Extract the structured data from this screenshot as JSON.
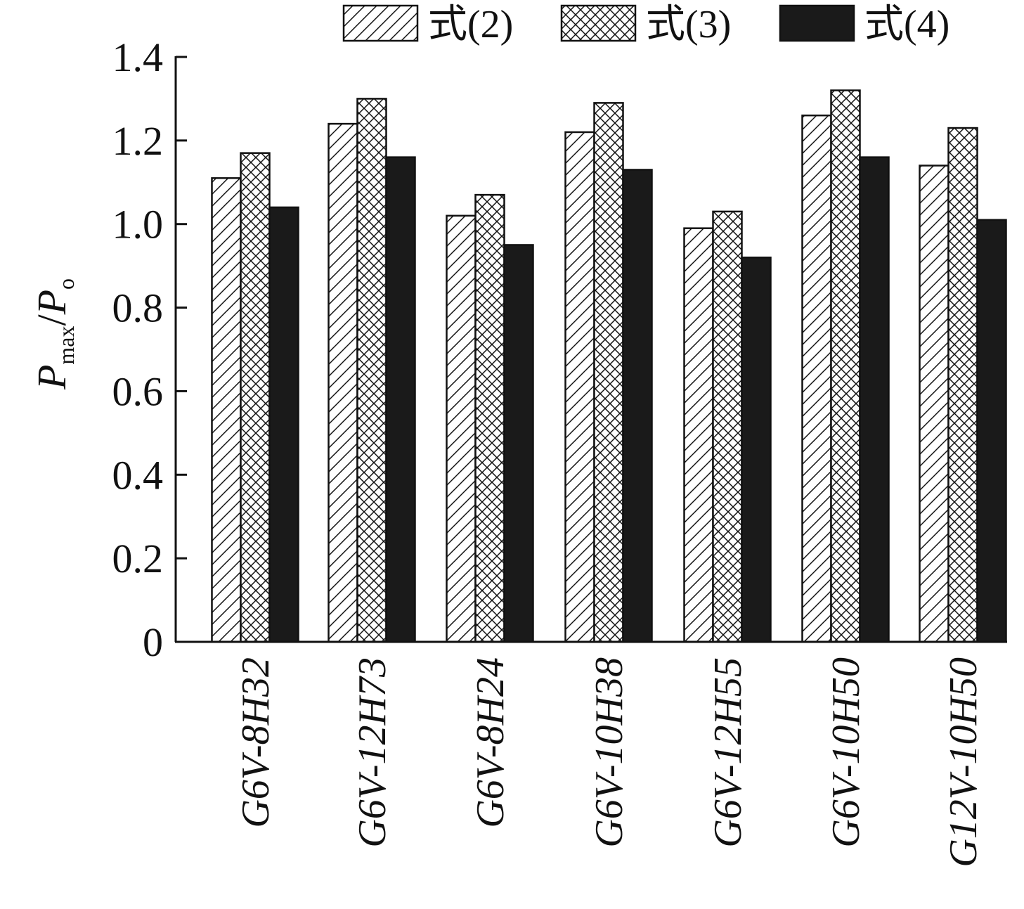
{
  "chart_data": {
    "type": "bar",
    "title": "",
    "xlabel": "",
    "ylabel": {
      "main1": "P",
      "sub1": "max",
      "slash": "/",
      "main2": "P",
      "sub2": "o"
    },
    "ylim": [
      0,
      1.4
    ],
    "yticks": [
      0,
      0.2,
      0.4,
      0.6,
      0.8,
      1.0,
      1.2,
      1.4
    ],
    "ytick_labels": [
      "0",
      "0.2",
      "0.4",
      "0.6",
      "0.8",
      "1.0",
      "1.2",
      "1.4"
    ],
    "categories": [
      "G6V-8H32",
      "G6V-12H73",
      "G6V-8H24",
      "G6V-10H38",
      "G6V-12H55",
      "G6V-10H50",
      "G12V-10H50"
    ],
    "series": [
      {
        "name": "式(2)",
        "pattern": "diagonal-hatch",
        "values": [
          1.11,
          1.24,
          1.02,
          1.22,
          0.99,
          1.26,
          1.14
        ]
      },
      {
        "name": "式(3)",
        "pattern": "cross-hatch",
        "values": [
          1.17,
          1.3,
          1.07,
          1.29,
          1.03,
          1.32,
          1.23
        ]
      },
      {
        "name": "式(4)",
        "pattern": "solid",
        "values": [
          1.04,
          1.16,
          0.95,
          1.13,
          0.92,
          1.16,
          1.01
        ]
      }
    ],
    "legend_position": "top-right",
    "grid": false,
    "colors": {
      "ink": "#111111",
      "fill_solid": "#1a1a1a",
      "background": "#ffffff"
    }
  }
}
